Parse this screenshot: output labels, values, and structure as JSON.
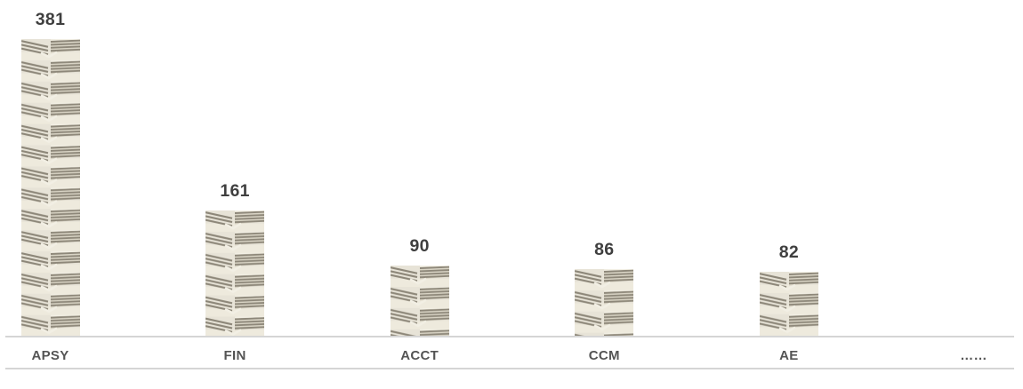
{
  "chart_data": {
    "type": "bar",
    "title": "",
    "xlabel": "",
    "ylabel": "",
    "categories": [
      "APSY",
      "FIN",
      "ACCT",
      "CCM",
      "AE",
      "……"
    ],
    "values": [
      381,
      161,
      90,
      86,
      82,
      null
    ],
    "data_labels": [
      "381",
      "161",
      "90",
      "86",
      "82",
      ""
    ],
    "ylim": [
      0,
      420
    ],
    "grid": false,
    "legend": false,
    "bar_fill_style": "stacked-banknote-bundle-texture",
    "colors": {
      "background": "#ffffff",
      "value_label": "#3f3f3f",
      "category_label": "#545454",
      "axis_line": "#d5d5d5",
      "texture_base": "#e7e3d7",
      "texture_cream": "#eeeadd",
      "texture_face": "#d9d4c5",
      "texture_stripe": "#8d8779",
      "texture_highlight": "#f2efe4"
    }
  }
}
